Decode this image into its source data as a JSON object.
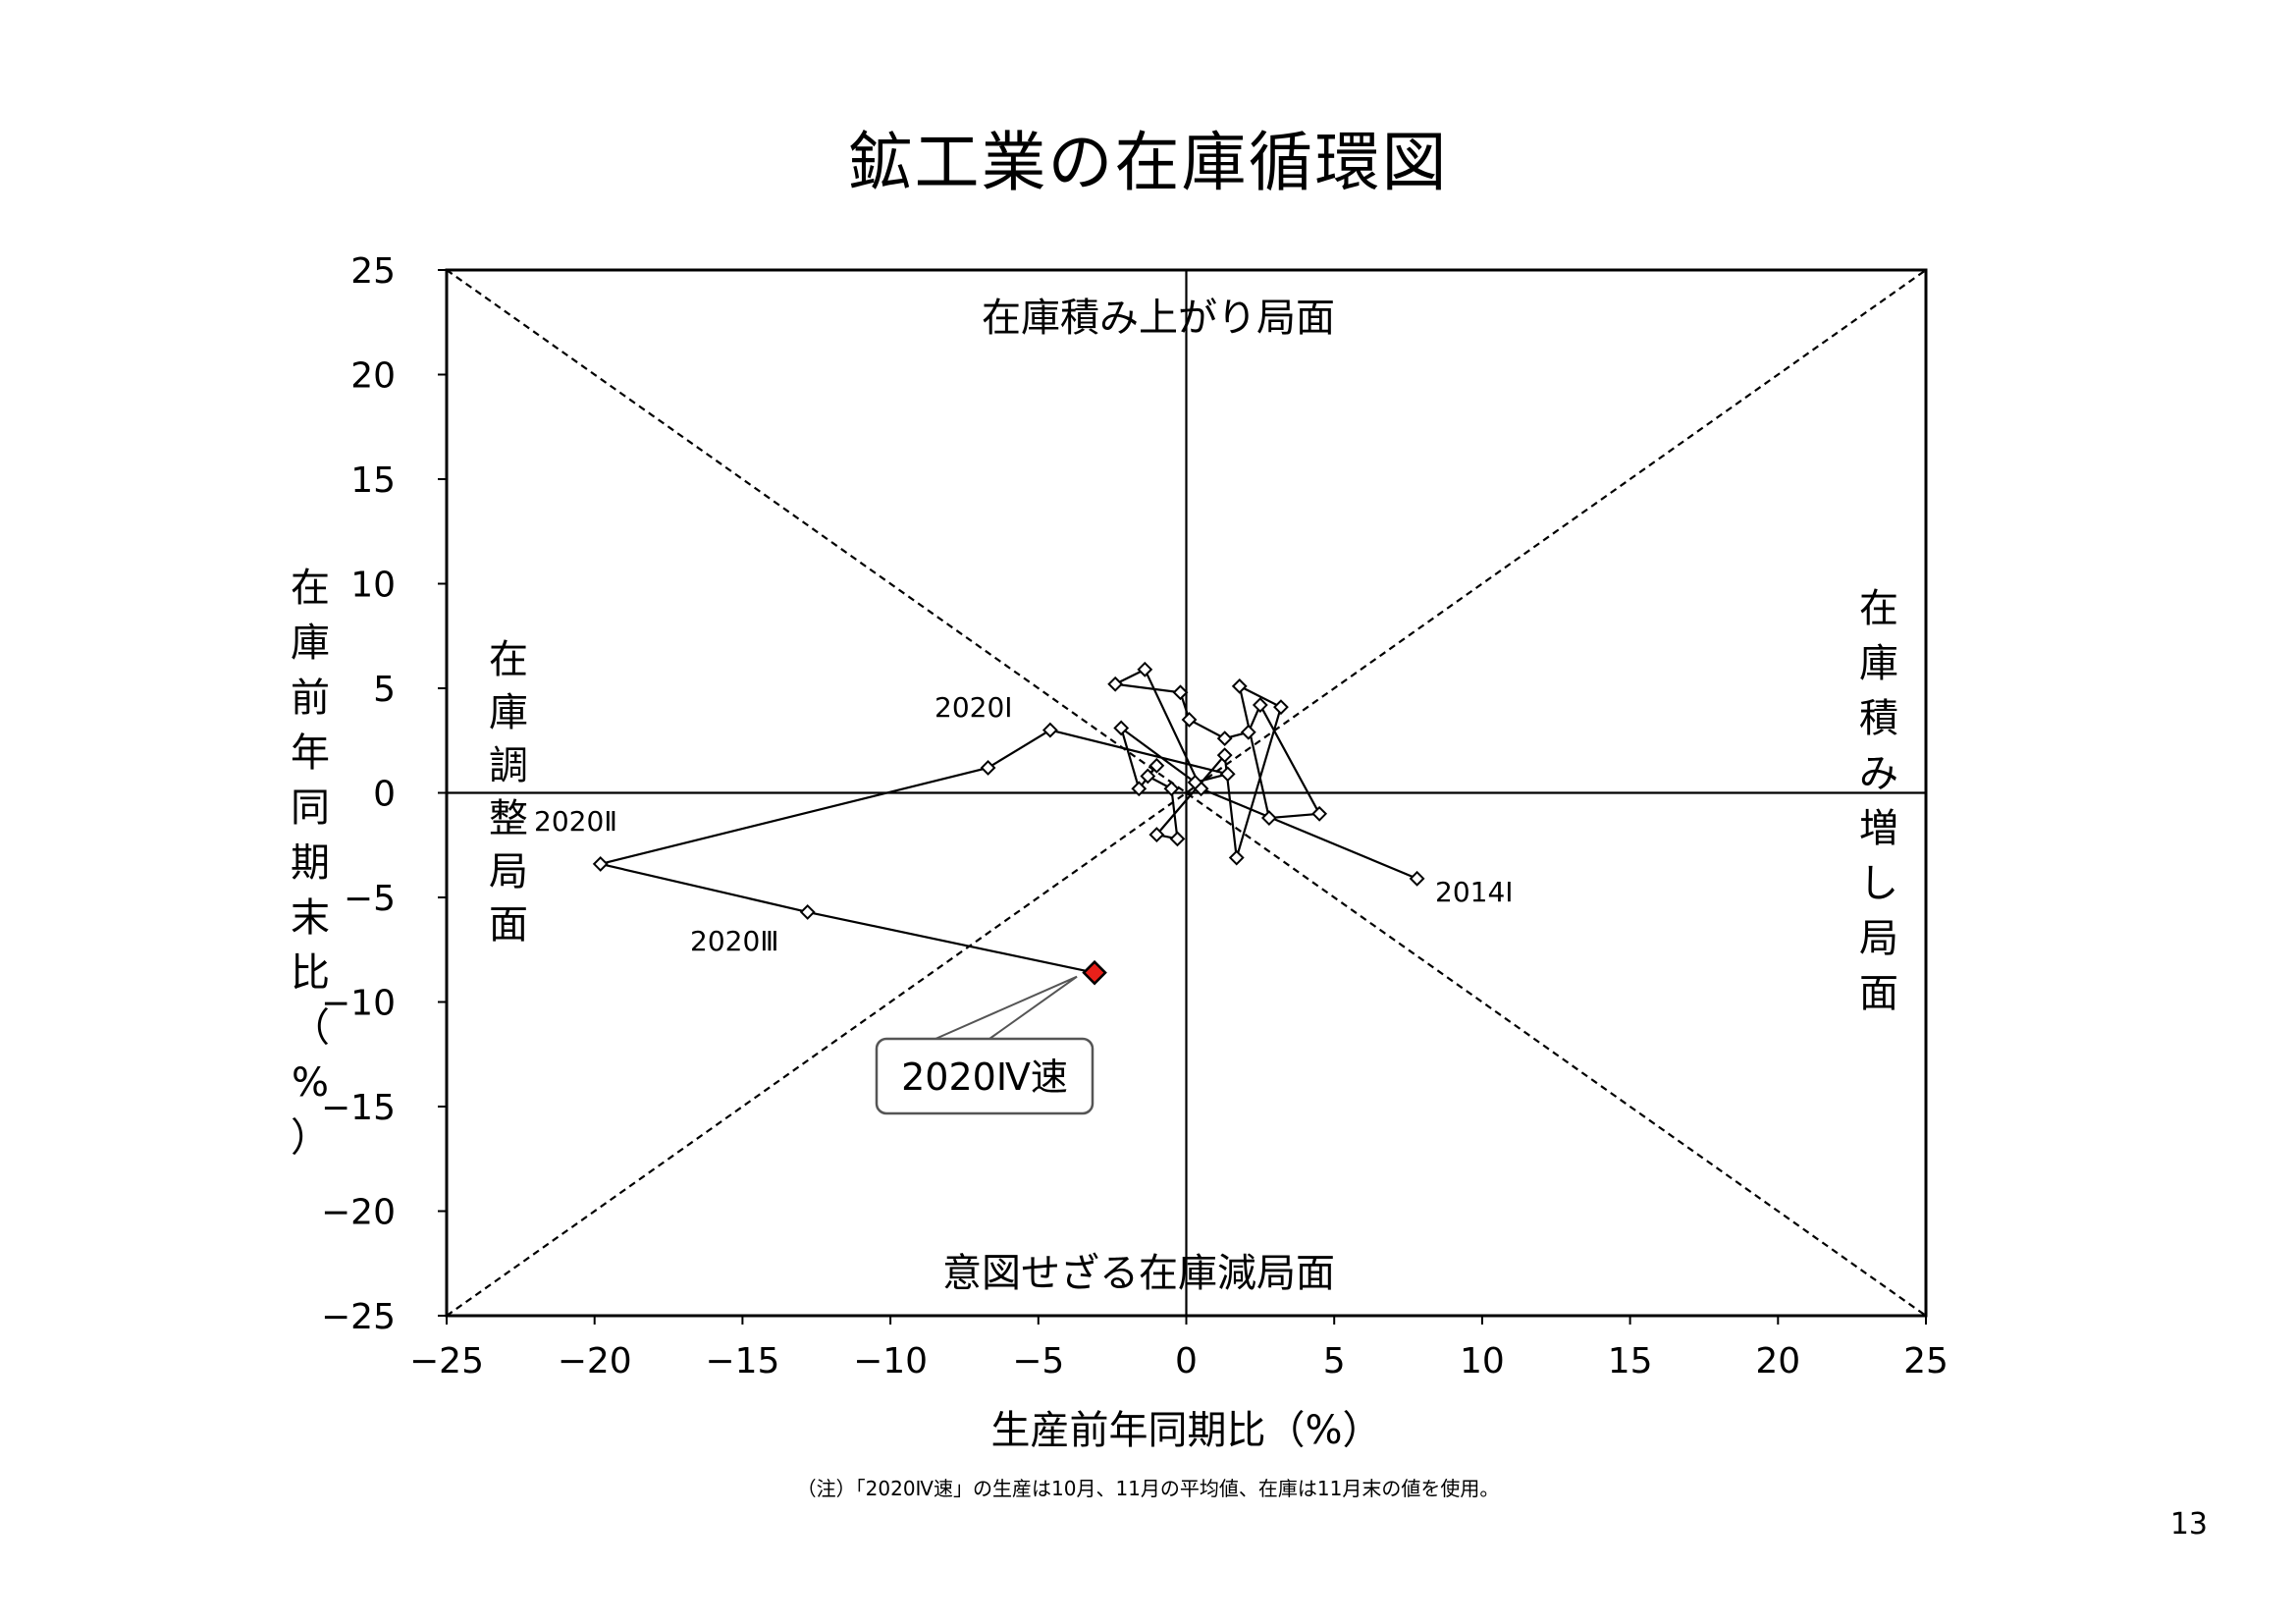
{
  "title": "鉱工業の在庫循環図",
  "note": "（注）「2020Ⅳ速」の生産は10月、11月の平均値、在庫は11月末の値を使用。",
  "page_number": "13",
  "colors": {
    "line": "#000000",
    "marker_fill": "#ffffff",
    "highlight": "#e8201a",
    "callout_border": "#555555"
  },
  "chart_data": {
    "type": "scatter",
    "xlabel": "生産前年同期比（%）",
    "ylabel": "在庫前年同期末比（%）",
    "xlim": [
      -25,
      25
    ],
    "ylim": [
      -25,
      25
    ],
    "xticks": [
      -25,
      -20,
      -15,
      -10,
      -5,
      0,
      5,
      10,
      15,
      20,
      25
    ],
    "yticks": [
      -25,
      -20,
      -15,
      -10,
      -5,
      0,
      5,
      10,
      15,
      20,
      25
    ],
    "grid": false,
    "reference_lines": "diagonals y=x and y=-x (dashed), axes x=0 and y=0 (solid)",
    "phases": {
      "top": "在庫積み上がり局面",
      "bottom": "意図せざる在庫減局面",
      "left": "在庫調整局面",
      "right": "在庫積み増し局面"
    },
    "series": [
      {
        "x": [
          7.8,
          0.5,
          -1.4,
          -2.4,
          -0.2,
          0.1,
          1.3,
          2.1,
          2.5,
          4.5,
          2.8,
          1.8,
          3.2,
          1.7,
          1.3,
          -1.0,
          -0.3,
          -0.5,
          -1.3,
          -1.0,
          -1.6,
          -2.2,
          0.3,
          1.4,
          -4.6,
          -6.7,
          -19.8,
          -12.8,
          -3.1
        ],
        "y": [
          -4.1,
          0.2,
          5.9,
          5.2,
          4.8,
          3.5,
          2.6,
          2.9,
          4.2,
          -1.0,
          -1.2,
          5.1,
          4.1,
          -3.1,
          1.8,
          -2.0,
          -2.2,
          0.2,
          0.8,
          1.3,
          0.2,
          3.1,
          0.5,
          0.9,
          3.0,
          1.2,
          -3.4,
          -5.7,
          -8.6
        ]
      }
    ],
    "point_labels": [
      {
        "text": "2014Ⅰ",
        "x": 7.8,
        "y": -4.1
      },
      {
        "text": "2020Ⅰ",
        "x": -4.6,
        "y": 3.0
      },
      {
        "text": "2020Ⅱ",
        "x": -19.8,
        "y": -3.4
      },
      {
        "text": "2020Ⅲ",
        "x": -12.8,
        "y": -5.7
      },
      {
        "text": "2020Ⅳ速",
        "x": -3.1,
        "y": -8.6
      }
    ]
  }
}
